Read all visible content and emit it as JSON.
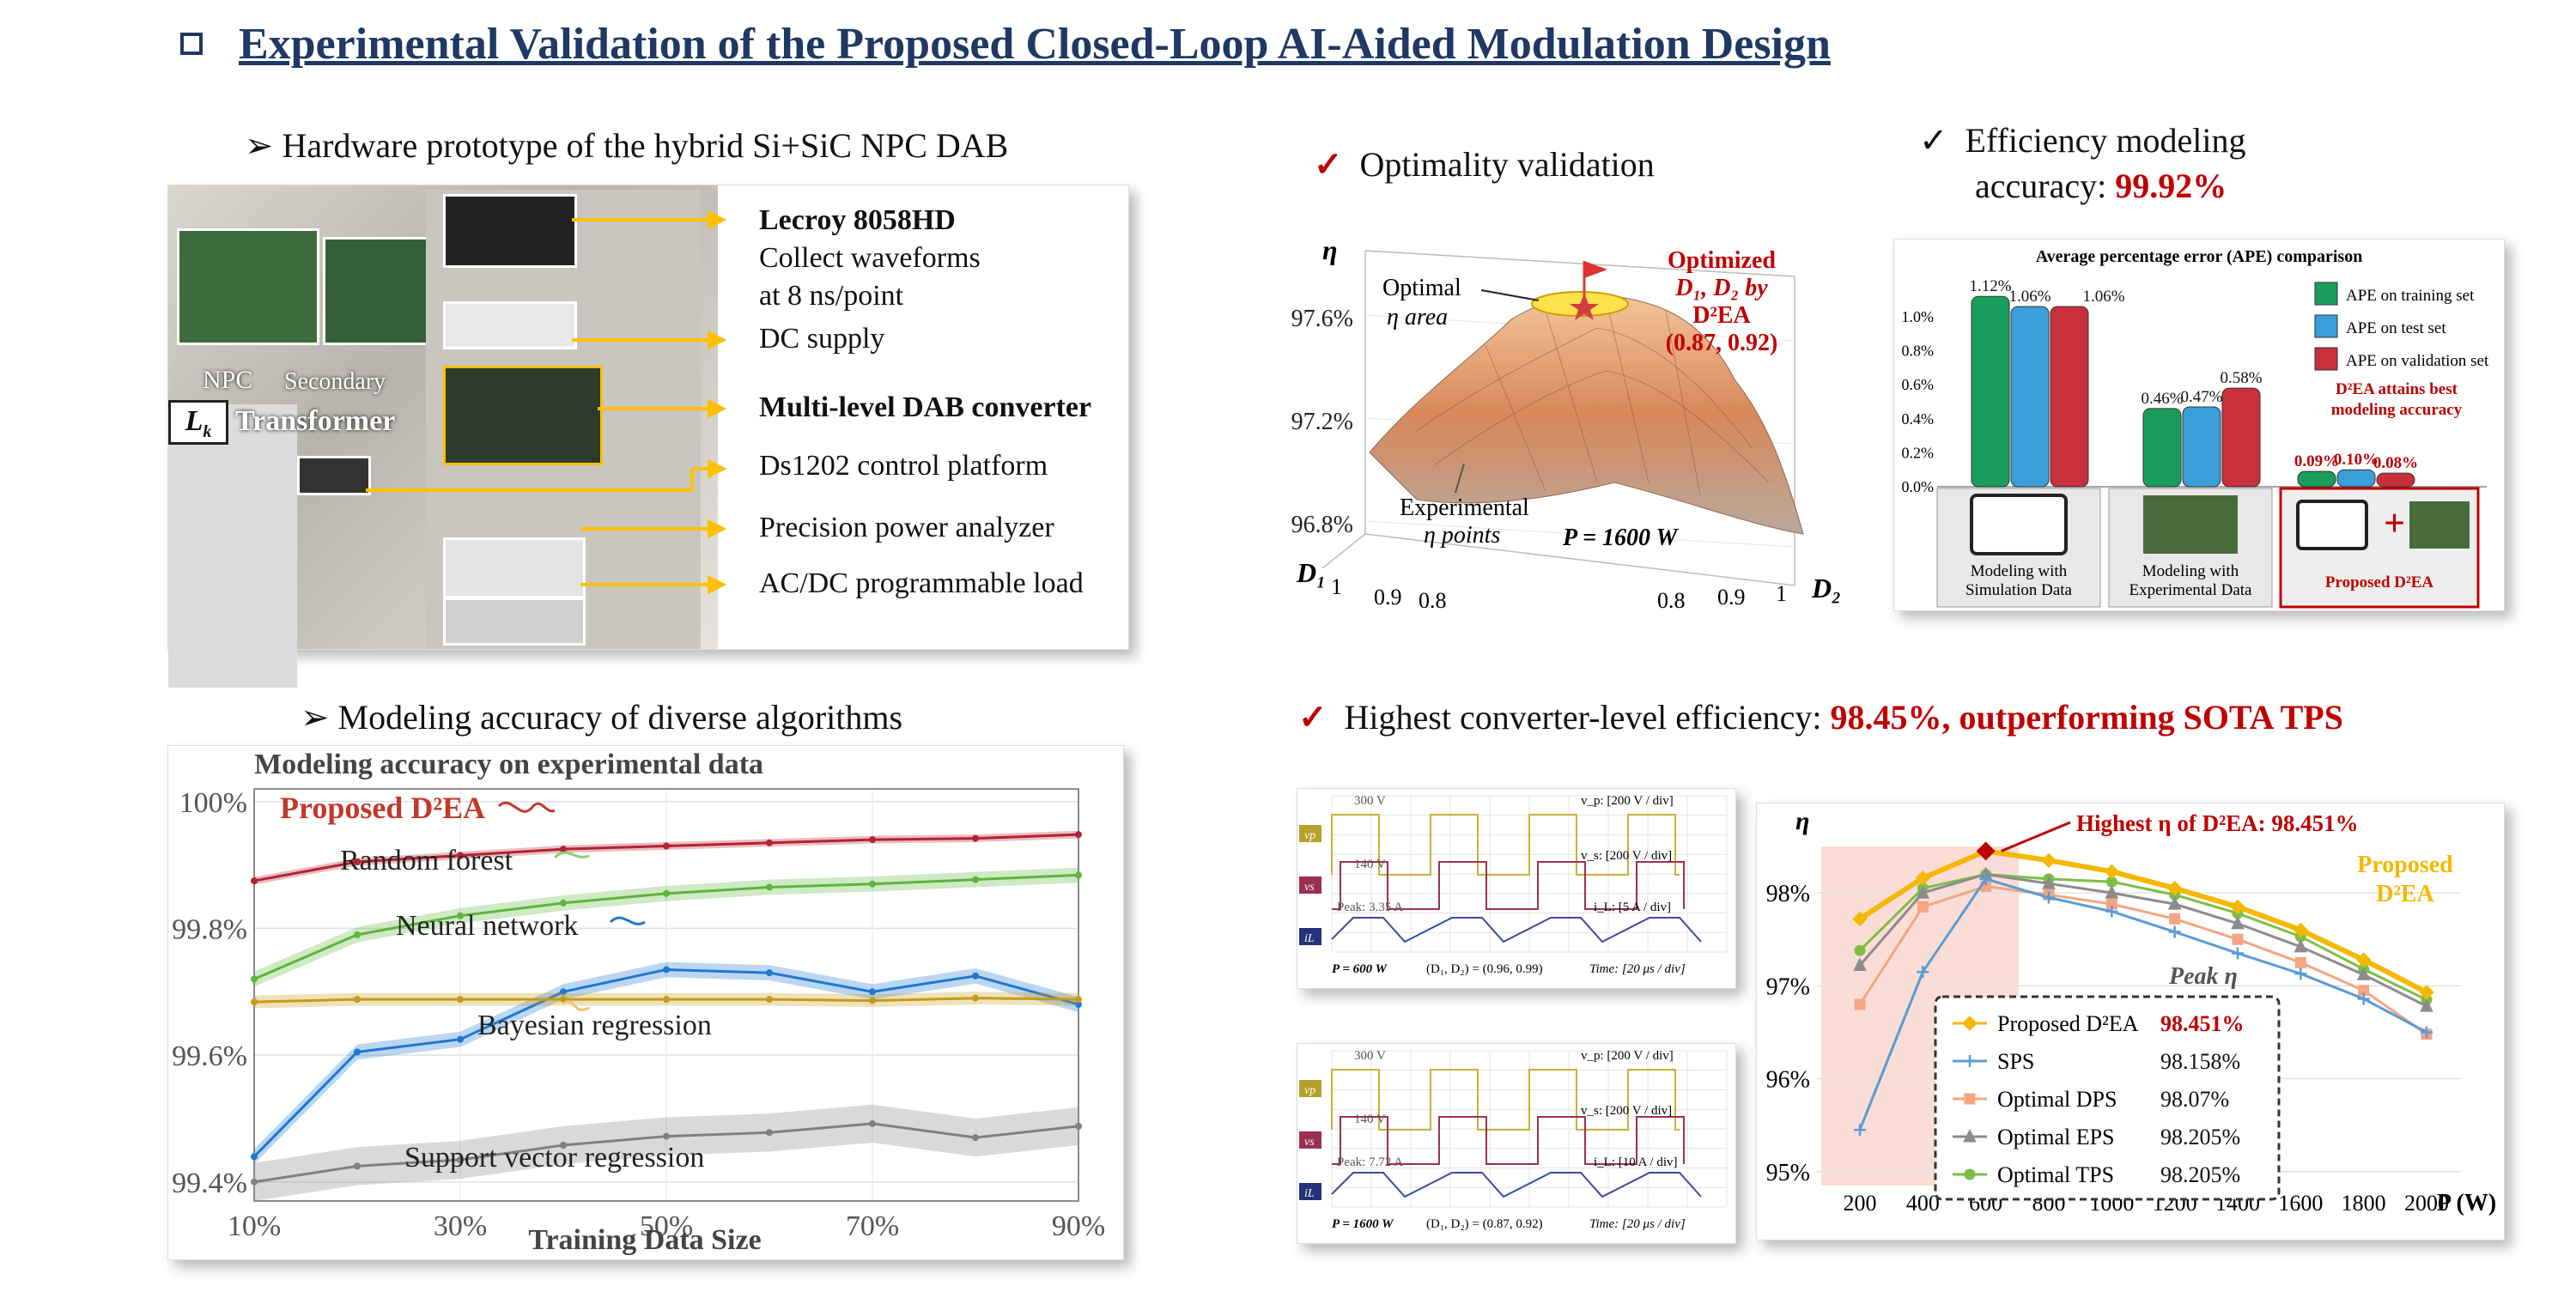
{
  "title": "Experimental Validation of the Proposed Closed-Loop AI-Aided Modulation Design",
  "hardware": {
    "heading": "Hardware prototype of the hybrid Si+SiC NPC DAB",
    "photo_labels": {
      "npc": "NPC",
      "secondary": "Secondary",
      "lk": "L",
      "lk_sub": "k",
      "transformer": "Transformer"
    },
    "callouts": [
      {
        "text": "Lecroy 8058HD",
        "bold": true
      },
      {
        "text": "Collect waveforms"
      },
      {
        "text": "at 8 ns/point"
      },
      {
        "text": "DC supply"
      },
      {
        "text": "Multi-level DAB converter",
        "bold": true
      },
      {
        "text": "Ds1202 control platform"
      },
      {
        "text": "Precision power analyzer"
      },
      {
        "text": "AC/DC programmable load"
      }
    ]
  },
  "optimality": {
    "heading": "Optimality validation",
    "labels": {
      "eta": "η",
      "optimal": "Optimal",
      "eta_area": "η area",
      "optimized": "Optimized",
      "d1d2by": "D₁, D₂ by",
      "d2ea": "D²EA",
      "point": "(0.87, 0.92)",
      "experimental": "Experimental",
      "eta_points": "η points",
      "power": "P = 1600 W",
      "d1": "D₁",
      "d2": "D₂"
    },
    "z_ticks": [
      "97.6%",
      "97.2%",
      "96.8%"
    ],
    "d1_ticks": [
      "1",
      "0.9",
      "0.8"
    ],
    "d2_ticks": [
      "0.8",
      "0.9",
      "1"
    ]
  },
  "efficiency_modeling": {
    "heading_line1": "Efficiency modeling",
    "heading_line2": "accuracy: ",
    "value": "99.92%"
  },
  "ape_chart": {
    "title": "Average percentage error (APE) comparison",
    "y_ticks": [
      "1.0%",
      "0.8%",
      "0.6%",
      "0.4%",
      "0.2%",
      "0.0%"
    ],
    "legend": [
      "APE on training set",
      "APE on test set",
      "APE on validation set"
    ],
    "legend_colors": [
      "#1a9e5c",
      "#3a9fd8",
      "#c8303c"
    ],
    "note_line1": "D²EA attains best",
    "note_line2": "modeling accuracy",
    "groups": [
      {
        "label_line1": "Modeling with",
        "label_line2": "Simulation Data",
        "values": [
          1.12,
          1.06,
          1.06
        ],
        "value_labels": [
          "1.12%",
          "1.06%",
          "1.06%"
        ]
      },
      {
        "label_line1": "Modeling with",
        "label_line2": "Experimental Data",
        "values": [
          0.46,
          0.47,
          0.58
        ],
        "value_labels": [
          "0.46%",
          "0.47%",
          "0.58%"
        ]
      },
      {
        "label_line1": "Proposed D²EA",
        "label_line2": "",
        "values": [
          0.09,
          0.1,
          0.08
        ],
        "value_labels": [
          "0.09%",
          "0.10%",
          "0.08%"
        ]
      }
    ]
  },
  "algorithms": {
    "heading": "Modeling accuracy of diverse algorithms"
  },
  "highest_eff": {
    "heading": "Highest converter-level efficiency: ",
    "value": "98.45%, outperforming SOTA TPS"
  },
  "waveforms": [
    {
      "vp": "v_p: [200 V / div]",
      "vs": "v_s: [200 V / div]",
      "il": "i_L: [5 A / div]",
      "v1": "300 V",
      "v2": "140 V",
      "peak": "Peak: 3.35 A",
      "power": "P = 600 W",
      "duty": "(D₁, D₂) = (0.96, 0.99)",
      "time": "Time: [20 μs / div]"
    },
    {
      "vp": "v_p: [200 V / div]",
      "vs": "v_s: [200 V / div]",
      "il": "i_L: [10 A / div]",
      "v1": "300 V",
      "v2": "140 V",
      "peak": "Peak: 7.72 A",
      "power": "P = 1600 W",
      "duty": "(D₁, D₂) = (0.87, 0.92)",
      "time": "Time: [20 μs / div]"
    }
  ],
  "chart_data": [
    {
      "type": "line",
      "title": "Modeling accuracy on experimental data",
      "xlabel": "Training Data Size",
      "ylabel": "",
      "x": [
        10,
        20,
        30,
        40,
        50,
        60,
        70,
        80,
        90
      ],
      "x_ticks": [
        "10%",
        "30%",
        "50%",
        "70%",
        "90%"
      ],
      "x_tick_values": [
        10,
        30,
        50,
        70,
        90
      ],
      "y_ticks": [
        "100%",
        "99.8%",
        "99.6%",
        "99.4%"
      ],
      "y_tick_values": [
        100,
        99.8,
        99.6,
        99.4
      ],
      "ylim": [
        99.37,
        100.02
      ],
      "series": [
        {
          "name": "Proposed D²EA",
          "color": "#b22234",
          "values": [
            99.875,
            99.905,
            99.915,
            99.925,
            99.93,
            99.935,
            99.94,
            99.942,
            99.948
          ],
          "band": 0.006
        },
        {
          "name": "Random forest",
          "color": "#5cb53c",
          "values": [
            99.72,
            99.79,
            99.82,
            99.84,
            99.855,
            99.865,
            99.87,
            99.877,
            99.884
          ],
          "band": 0.012
        },
        {
          "name": "Neural network",
          "color": "#1f77d0",
          "values": [
            99.44,
            99.605,
            99.625,
            99.7,
            99.735,
            99.73,
            99.7,
            99.725,
            99.68
          ],
          "band": 0.012
        },
        {
          "name": "Bayesian regression",
          "color": "#c79a1c",
          "values": [
            99.684,
            99.688,
            99.688,
            99.688,
            99.688,
            99.688,
            99.686,
            99.69,
            99.688
          ],
          "band": 0.01
        },
        {
          "name": "Support vector regression",
          "color": "#808080",
          "values": [
            99.4,
            99.425,
            99.435,
            99.458,
            99.472,
            99.478,
            99.492,
            99.47,
            99.488
          ],
          "band": 0.03
        }
      ]
    },
    {
      "type": "line",
      "title": "",
      "xlabel": "P (W)",
      "ylabel": "η",
      "x": [
        200,
        400,
        600,
        800,
        1000,
        1200,
        1400,
        1600,
        1800,
        2000
      ],
      "x_ticks": [
        "200",
        "400",
        "600",
        "800",
        "1000",
        "1200",
        "1400",
        "1600",
        "1800",
        "2000"
      ],
      "y_ticks": [
        "98%",
        "97%",
        "96%",
        "95%"
      ],
      "y_tick_values": [
        98,
        97,
        96,
        95
      ],
      "ylim": [
        94.85,
        98.5
      ],
      "annotation": "Highest η of D²EA: 98.451%",
      "proposed_label_line1": "Proposed",
      "proposed_label_line2": "D²EA",
      "legend_header": "Peak η",
      "series": [
        {
          "name": "Proposed D²EA",
          "peak": "98.451%",
          "color": "#f5b800",
          "marker": "diamond",
          "values": [
            97.72,
            98.16,
            98.45,
            98.35,
            98.23,
            98.05,
            97.85,
            97.6,
            97.28,
            96.93
          ]
        },
        {
          "name": "SPS",
          "peak": "98.158%",
          "color": "#5b9bd5",
          "marker": "plus",
          "values": [
            95.45,
            97.15,
            98.15,
            97.95,
            97.8,
            97.58,
            97.35,
            97.13,
            96.86,
            96.5
          ]
        },
        {
          "name": "Optimal DPS",
          "peak": "98.07%",
          "color": "#f4a582",
          "marker": "square",
          "values": [
            96.8,
            97.85,
            98.07,
            97.98,
            97.88,
            97.72,
            97.5,
            97.25,
            96.95,
            96.48
          ]
        },
        {
          "name": "Optimal EPS",
          "peak": "98.205%",
          "color": "#8c8c8c",
          "marker": "triangle",
          "values": [
            97.22,
            98.0,
            98.2,
            98.1,
            98.0,
            97.88,
            97.67,
            97.42,
            97.12,
            96.78
          ]
        },
        {
          "name": "Optimal TPS",
          "peak": "98.205%",
          "color": "#7cbf43",
          "marker": "circle",
          "values": [
            97.38,
            98.05,
            98.2,
            98.15,
            98.12,
            97.98,
            97.78,
            97.53,
            97.18,
            96.85
          ]
        }
      ]
    }
  ]
}
